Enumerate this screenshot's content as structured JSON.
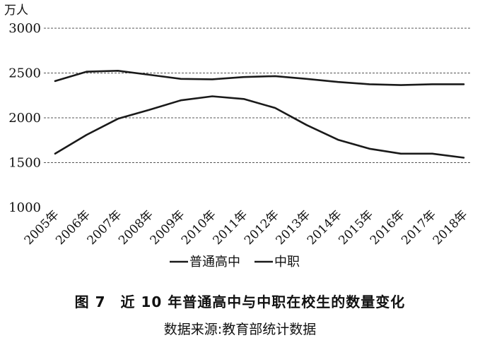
{
  "figure": {
    "title": "图 7　近 10 年普通高中与中职在校生的数量变化",
    "source": "数据来源:教育部统计数据"
  },
  "chart_data": {
    "type": "line",
    "unit_label": "万人",
    "categories": [
      "2005年",
      "2006年",
      "2007年",
      "2008年",
      "2009年",
      "2010年",
      "2011年",
      "2012年",
      "2013年",
      "2014年",
      "2015年",
      "2016年",
      "2017年",
      "2018年"
    ],
    "ylim": [
      1000,
      3000
    ],
    "yticks": [
      1000,
      1500,
      2000,
      2500,
      3000
    ],
    "grid": "horizontal dashed",
    "legend_position": "bottom",
    "series": [
      {
        "name": "普通高中",
        "values": [
          2410,
          2515,
          2525,
          2480,
          2435,
          2430,
          2455,
          2465,
          2435,
          2400,
          2375,
          2365,
          2375,
          2375
        ]
      },
      {
        "name": "中职",
        "values": [
          1600,
          1810,
          1990,
          2090,
          2195,
          2240,
          2210,
          2110,
          1920,
          1755,
          1655,
          1600,
          1600,
          1555
        ]
      }
    ],
    "line_color": "#1a1a1a"
  }
}
